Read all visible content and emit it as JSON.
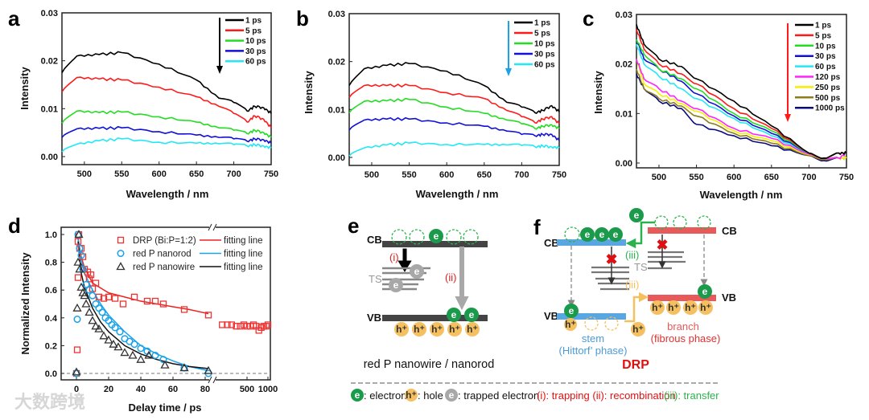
{
  "panel_labels": {
    "a": "a",
    "b": "b",
    "c": "c",
    "d": "d",
    "e": "e",
    "f": "f"
  },
  "watermark": "大数跨境",
  "chart_data": [
    {
      "panel": "a",
      "type": "line",
      "xlabel": "Wavelength / nm",
      "ylabel": "Intensity",
      "xlim": [
        470,
        750
      ],
      "ylim": [
        0,
        0.03
      ],
      "xticks": [
        500,
        550,
        600,
        650,
        700,
        750
      ],
      "yticks": [
        "0.00",
        "0.01",
        "0.02",
        "0.03"
      ],
      "arrow_color": "#000000",
      "x": [
        470,
        490,
        520,
        550,
        600,
        650,
        680,
        700,
        718,
        728,
        740,
        750
      ],
      "series": [
        {
          "name": "1 ps",
          "color": "#000000",
          "values": [
            0.0175,
            0.021,
            0.0213,
            0.0217,
            0.0193,
            0.016,
            0.0122,
            0.0113,
            0.0095,
            0.0105,
            0.0102,
            0.009
          ]
        },
        {
          "name": "5 ps",
          "color": "#ff1a1a",
          "values": [
            0.0135,
            0.0165,
            0.0162,
            0.016,
            0.0145,
            0.0125,
            0.0105,
            0.009,
            0.0072,
            0.0085,
            0.0078,
            0.006
          ]
        },
        {
          "name": "10 ps",
          "color": "#22dd22",
          "values": [
            0.007,
            0.0095,
            0.0092,
            0.0093,
            0.0083,
            0.0072,
            0.006,
            0.0055,
            0.0048,
            0.0055,
            0.005,
            0.004
          ]
        },
        {
          "name": "30 ps",
          "color": "#1010d8",
          "values": [
            0.004,
            0.0058,
            0.0059,
            0.006,
            0.0052,
            0.0045,
            0.004,
            0.0037,
            0.0032,
            0.0037,
            0.0035,
            0.0028
          ]
        },
        {
          "name": "60 ps",
          "color": "#22e8f5",
          "values": [
            0.001,
            0.0026,
            0.0033,
            0.0037,
            0.003,
            0.0028,
            0.0027,
            0.0025,
            0.0022,
            0.0025,
            0.0022,
            0.0018
          ]
        }
      ]
    },
    {
      "panel": "b",
      "type": "line",
      "xlabel": "Wavelength / nm",
      "ylabel": "Intensity",
      "xlim": [
        470,
        750
      ],
      "ylim": [
        0,
        0.03
      ],
      "xticks": [
        500,
        550,
        600,
        650,
        700,
        750
      ],
      "yticks": [
        "0.00",
        "0.01",
        "0.02",
        "0.03"
      ],
      "arrow_color": "#1aa3e8",
      "x": [
        470,
        490,
        520,
        550,
        600,
        650,
        680,
        700,
        718,
        728,
        740,
        750
      ],
      "series": [
        {
          "name": "1 ps",
          "color": "#000000",
          "values": [
            0.015,
            0.0185,
            0.0192,
            0.0196,
            0.018,
            0.015,
            0.0115,
            0.0105,
            0.0093,
            0.0098,
            0.0108,
            0.0095
          ]
        },
        {
          "name": "5 ps",
          "color": "#ff1a1a",
          "values": [
            0.0125,
            0.015,
            0.015,
            0.015,
            0.0135,
            0.0123,
            0.0098,
            0.0085,
            0.0072,
            0.008,
            0.0085,
            0.007
          ]
        },
        {
          "name": "10 ps",
          "color": "#22dd22",
          "values": [
            0.0093,
            0.0117,
            0.0118,
            0.0121,
            0.0105,
            0.0092,
            0.0078,
            0.007,
            0.006,
            0.0065,
            0.0068,
            0.006
          ]
        },
        {
          "name": "30 ps",
          "color": "#1010d8",
          "values": [
            0.0057,
            0.0078,
            0.008,
            0.008,
            0.0072,
            0.0065,
            0.0055,
            0.0048,
            0.0045,
            0.0048,
            0.0048,
            0.0035
          ]
        },
        {
          "name": "60 ps",
          "color": "#22e8f5",
          "values": [
            0.0003,
            0.002,
            0.0026,
            0.003,
            0.0027,
            0.0027,
            0.0026,
            0.0025,
            0.0022,
            0.0024,
            0.0022,
            0.002
          ]
        }
      ]
    },
    {
      "panel": "c",
      "type": "line",
      "xlabel": "Wavelength / nm",
      "ylabel": "Intensity",
      "xlim": [
        470,
        750
      ],
      "ylim": [
        0,
        0.03
      ],
      "xticks": [
        500,
        550,
        600,
        650,
        700,
        750
      ],
      "yticks": [
        "0.00",
        "0.01",
        "0.02",
        "0.03"
      ],
      "arrow_color": "#ff1a1a",
      "x": [
        470,
        480,
        500,
        530,
        550,
        600,
        650,
        700,
        720,
        740,
        750
      ],
      "series": [
        {
          "name": "1 ps",
          "color": "#000000",
          "values": [
            0.028,
            0.024,
            0.021,
            0.0195,
            0.017,
            0.0125,
            0.0075,
            0.002,
            0.001,
            0.002,
            0.002
          ]
        },
        {
          "name": "5 ps",
          "color": "#ff1a1a",
          "values": [
            0.027,
            0.023,
            0.02,
            0.018,
            0.016,
            0.011,
            0.007,
            0.002,
            0.001,
            0.002,
            0.002
          ]
        },
        {
          "name": "10 ps",
          "color": "#22dd22",
          "values": [
            0.025,
            0.022,
            0.019,
            0.017,
            0.015,
            0.01,
            0.0065,
            0.002,
            0.001,
            0.002,
            0.002
          ]
        },
        {
          "name": "30 ps",
          "color": "#1010d8",
          "values": [
            0.025,
            0.021,
            0.019,
            0.0165,
            0.014,
            0.0095,
            0.006,
            0.002,
            0.001,
            0.002,
            0.002
          ]
        },
        {
          "name": "60 ps",
          "color": "#22e8f5",
          "values": [
            0.024,
            0.02,
            0.0175,
            0.015,
            0.013,
            0.009,
            0.0055,
            0.002,
            0.001,
            0.002,
            0.002
          ]
        },
        {
          "name": "120 ps",
          "color": "#ff22ff",
          "values": [
            0.021,
            0.017,
            0.015,
            0.0125,
            0.011,
            0.007,
            0.005,
            0.0018,
            0.001,
            0.001,
            0.002
          ]
        },
        {
          "name": "250 ps",
          "color": "#f5f000",
          "values": [
            0.021,
            0.016,
            0.014,
            0.012,
            0.0105,
            0.0065,
            0.0045,
            0.0017,
            0.001,
            0.001,
            0.001
          ]
        },
        {
          "name": "500 ps",
          "color": "#8b7d1a",
          "values": [
            0.019,
            0.015,
            0.013,
            0.0115,
            0.0095,
            0.006,
            0.004,
            0.0015,
            0.0008,
            0.001,
            0.001
          ]
        },
        {
          "name": "1000 ps",
          "color": "#0a0a80",
          "values": [
            0.018,
            0.015,
            0.0125,
            0.011,
            0.0078,
            0.0055,
            0.0035,
            0.0015,
            0.0005,
            0.001,
            0.001
          ]
        }
      ]
    },
    {
      "panel": "d",
      "type": "scatter",
      "xlabel": "Delay time / ps",
      "ylabel": "Normalized Intensity",
      "xlim_left": [
        -5,
        85
      ],
      "xlim_right": [
        200,
        1000
      ],
      "x_break": true,
      "ylim": [
        -0.05,
        1.05
      ],
      "xticks_left": [
        "0",
        "20",
        "40",
        "60",
        "80"
      ],
      "xticks_right": [
        "500",
        "1000"
      ],
      "yticks": [
        "0.0",
        "0.2",
        "0.4",
        "0.6",
        "0.8",
        "1.0"
      ],
      "series": [
        {
          "name": "DRP (Bi:P=1:2)",
          "marker": "square",
          "color": "#ee3333",
          "x": [
            0,
            0.5,
            1,
            1,
            1.5,
            2,
            3,
            4,
            5,
            7,
            8,
            9,
            10,
            12,
            14,
            17,
            20,
            24,
            29,
            36,
            44,
            49,
            54,
            67,
            82,
            220,
            260,
            300,
            350,
            400,
            450,
            500,
            560,
            620,
            680,
            740,
            800,
            870,
            940,
            1000
          ],
          "y": [
            0,
            0.17,
            0.69,
            0.95,
            1.0,
            0.9,
            0.9,
            0.84,
            0.75,
            0.73,
            0.68,
            0.71,
            0.61,
            0.65,
            0.55,
            0.54,
            0.55,
            0.54,
            0.5,
            0.55,
            0.52,
            0.52,
            0.5,
            0.46,
            0.42,
            0.35,
            0.35,
            0.35,
            0.34,
            0.34,
            0.35,
            0.34,
            0.34,
            0.35,
            0.34,
            0.31,
            0.33,
            0.34,
            0.34,
            0.35
          ]
        },
        {
          "name": "red P nanorod",
          "marker": "circle",
          "color": "#1aa3e8",
          "x": [
            0,
            0.5,
            1,
            2,
            3,
            4,
            6,
            8,
            10,
            12,
            14,
            16,
            18,
            20,
            22,
            24,
            27,
            30,
            33,
            36,
            40,
            44,
            49,
            54,
            67,
            82
          ],
          "y": [
            0,
            0.39,
            1.0,
            0.9,
            0.85,
            0.75,
            0.64,
            0.6,
            0.56,
            0.5,
            0.47,
            0.44,
            0.4,
            0.38,
            0.35,
            0.33,
            0.3,
            0.25,
            0.23,
            0.21,
            0.18,
            0.16,
            0.13,
            0.1,
            0.04,
            0.0
          ]
        },
        {
          "name": "red P nanowire",
          "marker": "triangle",
          "color": "#333333",
          "x": [
            0,
            0.5,
            1,
            1.5,
            2,
            3,
            4,
            5,
            6,
            8,
            10,
            12,
            14,
            17,
            20,
            23,
            26,
            30,
            35,
            40,
            45,
            55,
            67,
            82
          ],
          "y": [
            0.01,
            0.47,
            0.8,
            1.0,
            0.75,
            0.62,
            0.58,
            0.56,
            0.5,
            0.44,
            0.38,
            0.34,
            0.32,
            0.27,
            0.24,
            0.21,
            0.19,
            0.15,
            0.13,
            0.1,
            0.13,
            0.06,
            0.04,
            0.02
          ]
        }
      ],
      "fits": [
        {
          "name": "fitting line",
          "color": "#ee2222",
          "x": [
            1,
            3,
            5,
            10,
            20,
            30,
            40,
            50,
            60,
            70,
            82
          ],
          "y": [
            0.97,
            0.84,
            0.76,
            0.65,
            0.58,
            0.55,
            0.52,
            0.5,
            0.48,
            0.46,
            0.43
          ]
        },
        {
          "name": "fitting line",
          "color": "#1aa3e8",
          "x": [
            1,
            3,
            5,
            10,
            15,
            20,
            30,
            40,
            50,
            60,
            70,
            82
          ],
          "y": [
            0.98,
            0.82,
            0.72,
            0.6,
            0.5,
            0.42,
            0.3,
            0.2,
            0.14,
            0.09,
            0.05,
            0.02
          ]
        },
        {
          "name": "fitting line",
          "color": "#111111",
          "x": [
            1,
            3,
            5,
            10,
            15,
            20,
            30,
            40,
            50,
            60,
            70,
            82
          ],
          "y": [
            0.95,
            0.72,
            0.62,
            0.47,
            0.37,
            0.3,
            0.2,
            0.14,
            0.1,
            0.07,
            0.05,
            0.035
          ]
        }
      ]
    }
  ],
  "symbols": {
    "electron": "e",
    "hole": "h⁺"
  },
  "diagram_e": {
    "cb": "CB",
    "vb": "VB",
    "ts": "TS",
    "step_i": "(i)",
    "step_ii": "(ii)",
    "caption": "red P nanowire / nanorod"
  },
  "diagram_f": {
    "cb_stem": "CB",
    "vb_stem": "VB",
    "cb_branch": "CB",
    "vb_branch": "VB",
    "ts": "TS",
    "step_iii_green": "(iii)",
    "step_iii_yellow": "(iii)",
    "stem": "stem",
    "stem_phase": "(Hittorf’ phase)",
    "branch": "branch",
    "branch_phase": "(fibrous phase)",
    "caption": "DRP",
    "colors": {
      "stem": "#4a9bd8",
      "branch": "#e85a5a",
      "electron": "#1a9a4a",
      "hole": "#f5c060",
      "transfer": "#2bb24c",
      "hole_transfer": "#f5c060"
    }
  },
  "legend": {
    "electron": ": electron",
    "hole": ": hole",
    "trapped": ": trapped electron",
    "red_part": "(i): trapping (ii): recombination",
    "green_part": "(iii): transfer"
  }
}
